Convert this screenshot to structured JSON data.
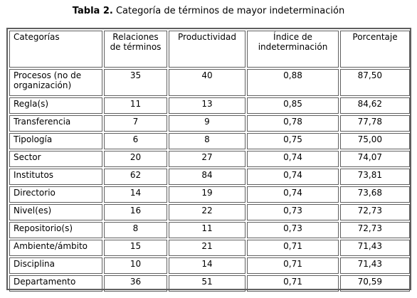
{
  "caption": {
    "number": "Tabla 2.",
    "text": "Categoría de términos de mayor indeterminación"
  },
  "table": {
    "headers": [
      "Categorías",
      "Relaciones de términos",
      "Productividad",
      "Índice de indeterminación",
      "Porcentaje"
    ],
    "rows": [
      [
        "Procesos (no de organización)",
        "35",
        "40",
        "0,88",
        "87,50"
      ],
      [
        "Regla(s)",
        "11",
        "13",
        "0,85",
        "84,62"
      ],
      [
        "Transferencia",
        "7",
        "9",
        "0,78",
        "77,78"
      ],
      [
        "Tipología",
        "6",
        "8",
        "0,75",
        "75,00"
      ],
      [
        "Sector",
        "20",
        "27",
        "0,74",
        "74,07"
      ],
      [
        "Institutos",
        "62",
        "84",
        "0,74",
        "73,81"
      ],
      [
        "Directorio",
        "14",
        "19",
        "0,74",
        "73,68"
      ],
      [
        "Nivel(es)",
        "16",
        "22",
        "0,73",
        "72,73"
      ],
      [
        "Repositorio(s)",
        "8",
        "11",
        "0,73",
        "72,73"
      ],
      [
        "Ambiente/ámbito",
        "15",
        "21",
        "0,71",
        "71,43"
      ],
      [
        "Disciplina",
        "10",
        "14",
        "0,71",
        "71,43"
      ],
      [
        "Departamento",
        "36",
        "51",
        "0,71",
        "70,59"
      ]
    ]
  }
}
